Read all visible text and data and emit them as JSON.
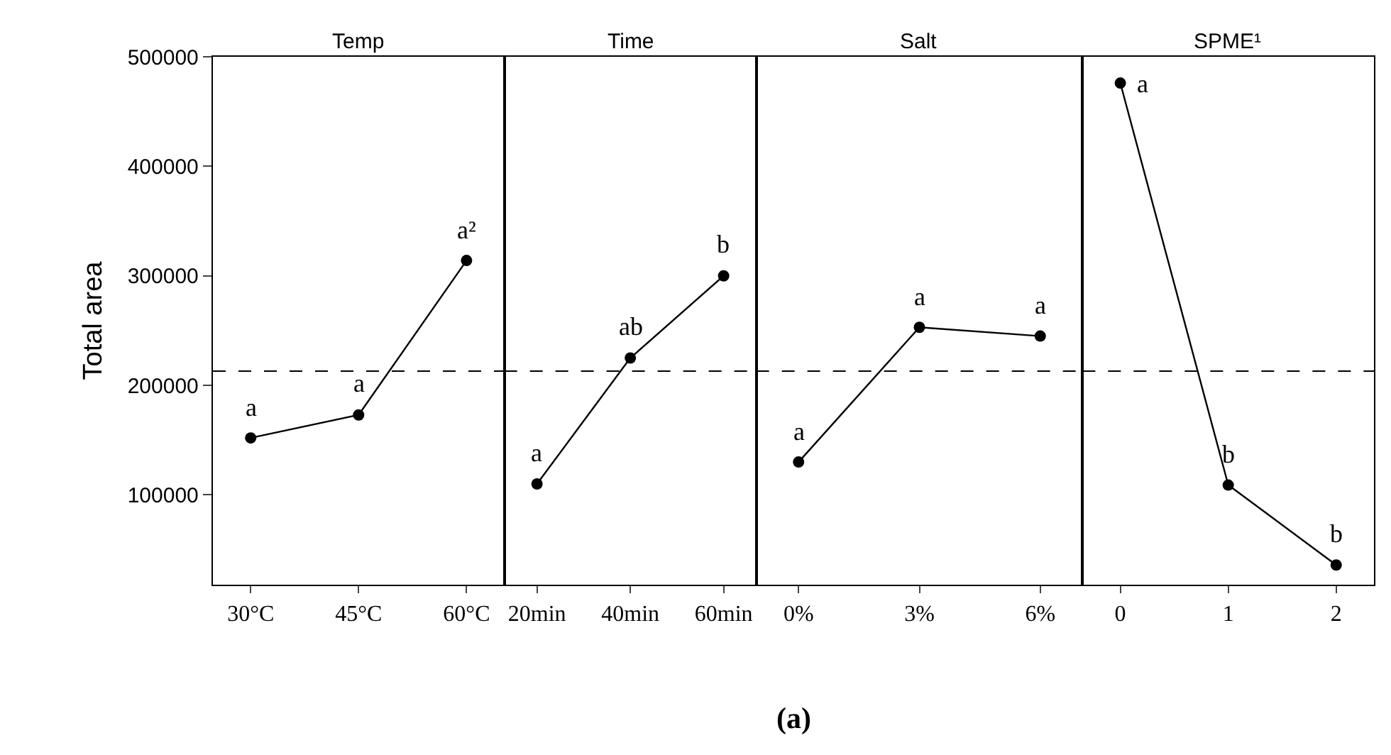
{
  "chart_data": [
    {
      "type": "line",
      "title": "Temp",
      "ylabel": "Total area",
      "categories": [
        "30°C",
        "45°C",
        "60°C"
      ],
      "series": [
        {
          "color": "#000000",
          "values": [
            152000,
            173000,
            314000
          ]
        }
      ],
      "ylim": [
        18000,
        500000
      ],
      "yticks": [
        100000,
        200000,
        300000,
        400000,
        500000
      ],
      "marker": "circle",
      "line_style": "solid",
      "grid": false,
      "ref_lines": [
        {
          "axis": "y",
          "value": 213000,
          "line_style": "dashed",
          "color": "#000000"
        }
      ],
      "annotations": [
        {
          "text": "a",
          "x": "30°C",
          "y": 152000
        },
        {
          "text": "a",
          "x": "45°C",
          "y": 173000
        },
        {
          "text": "a²",
          "x": "60°C",
          "y": 314000
        },
        "(a)"
      ]
    },
    {
      "type": "line",
      "title": "Time",
      "categories": [
        "20min",
        "40min",
        "60min"
      ],
      "series": [
        {
          "color": "#000000",
          "values": [
            110000,
            225000,
            300000
          ]
        }
      ],
      "ylim": [
        18000,
        500000
      ],
      "yticks": [
        100000,
        200000,
        300000,
        400000,
        500000
      ],
      "tick_labels": "x",
      "marker": "circle",
      "line_style": "solid",
      "grid": false,
      "ref_lines": [
        {
          "axis": "y",
          "value": 213000,
          "line_style": "dashed",
          "color": "#000000"
        }
      ],
      "annotations": [
        {
          "text": "a",
          "x": "20min",
          "y": 110000
        },
        {
          "text": "ab",
          "x": "40min",
          "y": 225000
        },
        {
          "text": "b",
          "x": "60min",
          "y": 300000
        }
      ]
    },
    {
      "type": "line",
      "title": "Salt",
      "categories": [
        "0%",
        "3%",
        "6%"
      ],
      "series": [
        {
          "color": "#000000",
          "values": [
            130000,
            253000,
            245000
          ]
        }
      ],
      "ylim": [
        18000,
        500000
      ],
      "yticks": [
        100000,
        200000,
        300000,
        400000,
        500000
      ],
      "tick_labels": "x",
      "marker": "circle",
      "line_style": "solid",
      "grid": false,
      "ref_lines": [
        {
          "axis": "y",
          "value": 213000,
          "line_style": "dashed",
          "color": "#000000"
        }
      ],
      "annotations": [
        {
          "text": "a",
          "x": "0%",
          "y": 130000
        },
        {
          "text": "a",
          "x": "3%",
          "y": 253000
        },
        {
          "text": "a",
          "x": "6%",
          "y": 245000
        }
      ]
    },
    {
      "type": "line",
      "title": "SPME¹",
      "categories": [
        "0",
        "1",
        "2"
      ],
      "series": [
        {
          "color": "#000000",
          "values": [
            476000,
            109000,
            36000
          ]
        }
      ],
      "ylim": [
        18000,
        500000
      ],
      "yticks": [
        100000,
        200000,
        300000,
        400000,
        500000
      ],
      "tick_labels": "x",
      "marker": "circle",
      "line_style": "solid",
      "grid": false,
      "ref_lines": [
        {
          "axis": "y",
          "value": 213000,
          "line_style": "dashed",
          "color": "#000000"
        }
      ],
      "annotations": [
        {
          "text": "a",
          "x": "0",
          "y": 476000
        },
        {
          "text": "b",
          "x": "1",
          "y": 109000
        },
        {
          "text": "b",
          "x": "2",
          "y": 36000
        }
      ]
    }
  ]
}
